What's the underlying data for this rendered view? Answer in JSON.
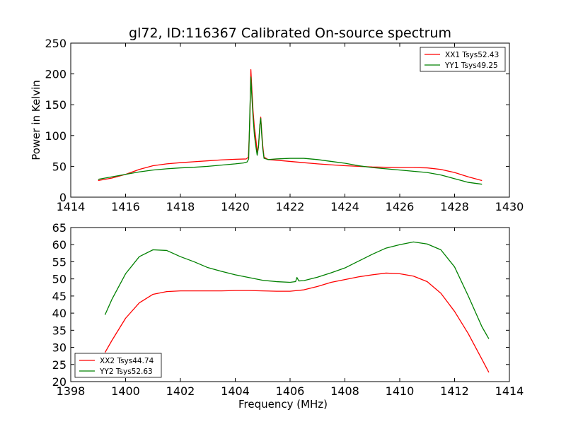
{
  "chart_data": [
    {
      "type": "line",
      "title": "gl72, ID:116367 Calibrated On-source spectrum",
      "xlabel": "",
      "ylabel": "Power in Kelvin",
      "xlim": [
        1414,
        1430
      ],
      "ylim": [
        0,
        250
      ],
      "xticks": [
        1414,
        1416,
        1418,
        1420,
        1422,
        1424,
        1426,
        1428,
        1430
      ],
      "yticks": [
        0,
        50,
        100,
        150,
        200,
        250
      ],
      "legend_position": "top-right",
      "series": [
        {
          "name": "XX1 Tsys52.43",
          "color": "#ff0000",
          "points": [
            [
              1415,
              27
            ],
            [
              1415.5,
              31
            ],
            [
              1416,
              37
            ],
            [
              1416.5,
              45
            ],
            [
              1417,
              51
            ],
            [
              1417.5,
              54
            ],
            [
              1418,
              56
            ],
            [
              1418.5,
              57.5
            ],
            [
              1419,
              59
            ],
            [
              1419.5,
              60.5
            ],
            [
              1420,
              61.5
            ],
            [
              1420.4,
              62
            ],
            [
              1420.48,
              65
            ],
            [
              1420.53,
              120
            ],
            [
              1420.57,
              207
            ],
            [
              1420.6,
              180
            ],
            [
              1420.65,
              140
            ],
            [
              1420.7,
              112
            ],
            [
              1420.74,
              100
            ],
            [
              1420.8,
              72
            ],
            [
              1420.85,
              85
            ],
            [
              1420.9,
              117
            ],
            [
              1420.93,
              130
            ],
            [
              1420.96,
              110
            ],
            [
              1421,
              85
            ],
            [
              1421.05,
              65
            ],
            [
              1421.2,
              61
            ],
            [
              1421.5,
              60
            ],
            [
              1422,
              58
            ],
            [
              1422.5,
              56
            ],
            [
              1423,
              54
            ],
            [
              1423.5,
              52.5
            ],
            [
              1424,
              51
            ],
            [
              1424.5,
              50
            ],
            [
              1425,
              49
            ],
            [
              1425.5,
              48.5
            ],
            [
              1426,
              48
            ],
            [
              1426.5,
              48
            ],
            [
              1427,
              47.5
            ],
            [
              1427.5,
              45
            ],
            [
              1428,
              40
            ],
            [
              1428.5,
              33
            ],
            [
              1429,
              27
            ]
          ]
        },
        {
          "name": "YY1 Tsys49.25",
          "color": "#008000",
          "points": [
            [
              1415,
              29
            ],
            [
              1415.5,
              33
            ],
            [
              1416,
              37
            ],
            [
              1416.5,
              41
            ],
            [
              1417,
              44
            ],
            [
              1417.5,
              46
            ],
            [
              1418,
              47.5
            ],
            [
              1418.5,
              48.5
            ],
            [
              1419,
              50
            ],
            [
              1419.5,
              52
            ],
            [
              1420,
              54
            ],
            [
              1420.3,
              55.5
            ],
            [
              1420.43,
              57
            ],
            [
              1420.49,
              62
            ],
            [
              1420.54,
              150
            ],
            [
              1420.57,
              195
            ],
            [
              1420.6,
              168
            ],
            [
              1420.65,
              130
            ],
            [
              1420.7,
              100
            ],
            [
              1420.75,
              83
            ],
            [
              1420.8,
              68
            ],
            [
              1420.85,
              82
            ],
            [
              1420.9,
              118
            ],
            [
              1420.93,
              128
            ],
            [
              1420.96,
              105
            ],
            [
              1421,
              80
            ],
            [
              1421.05,
              63
            ],
            [
              1421.2,
              61
            ],
            [
              1421.5,
              62
            ],
            [
              1422,
              63
            ],
            [
              1422.5,
              63
            ],
            [
              1423,
              61
            ],
            [
              1423.5,
              58
            ],
            [
              1424,
              55
            ],
            [
              1424.5,
              51
            ],
            [
              1425,
              48
            ],
            [
              1425.5,
              46
            ],
            [
              1426,
              44
            ],
            [
              1426.5,
              42
            ],
            [
              1427,
              40
            ],
            [
              1427.5,
              36
            ],
            [
              1428,
              30
            ],
            [
              1428.5,
              24
            ],
            [
              1429,
              21
            ]
          ]
        }
      ]
    },
    {
      "type": "line",
      "title": "",
      "xlabel": "Frequency (MHz)",
      "ylabel": "",
      "xlim": [
        1398,
        1414
      ],
      "ylim": [
        20,
        65
      ],
      "xticks": [
        1398,
        1400,
        1402,
        1404,
        1406,
        1408,
        1410,
        1412,
        1414
      ],
      "yticks": [
        20,
        25,
        30,
        35,
        40,
        45,
        50,
        55,
        60,
        65
      ],
      "legend_position": "bottom-left",
      "series": [
        {
          "name": "XX2 Tsys44.74",
          "color": "#ff0000",
          "points": [
            [
              1399.25,
              28.5
            ],
            [
              1399.5,
              32
            ],
            [
              1400,
              38.5
            ],
            [
              1400.5,
              43
            ],
            [
              1401,
              45.5
            ],
            [
              1401.5,
              46.3
            ],
            [
              1402,
              46.5
            ],
            [
              1402.5,
              46.5
            ],
            [
              1403,
              46.5
            ],
            [
              1403.5,
              46.5
            ],
            [
              1404,
              46.6
            ],
            [
              1404.5,
              46.6
            ],
            [
              1405,
              46.5
            ],
            [
              1405.5,
              46.4
            ],
            [
              1406,
              46.4
            ],
            [
              1406.5,
              46.8
            ],
            [
              1407,
              47.8
            ],
            [
              1407.5,
              49
            ],
            [
              1408,
              49.8
            ],
            [
              1408.5,
              50.6
            ],
            [
              1409,
              51.2
            ],
            [
              1409.5,
              51.7
            ],
            [
              1410,
              51.5
            ],
            [
              1410.5,
              50.8
            ],
            [
              1411,
              49.2
            ],
            [
              1411.5,
              45.8
            ],
            [
              1412,
              40.5
            ],
            [
              1412.5,
              34
            ],
            [
              1413,
              26.5
            ],
            [
              1413.25,
              22.7
            ]
          ]
        },
        {
          "name": "YY2 Tsys52.63",
          "color": "#008000",
          "points": [
            [
              1399.25,
              39.5
            ],
            [
              1399.5,
              44
            ],
            [
              1400,
              51.5
            ],
            [
              1400.5,
              56.5
            ],
            [
              1401,
              58.5
            ],
            [
              1401.5,
              58.3
            ],
            [
              1402,
              56.5
            ],
            [
              1402.5,
              55
            ],
            [
              1403,
              53.3
            ],
            [
              1403.5,
              52.2
            ],
            [
              1404,
              51.2
            ],
            [
              1404.5,
              50.4
            ],
            [
              1405,
              49.6
            ],
            [
              1405.5,
              49.2
            ],
            [
              1406,
              49
            ],
            [
              1406.2,
              49.2
            ],
            [
              1406.25,
              50.4
            ],
            [
              1406.32,
              49.4
            ],
            [
              1406.5,
              49.5
            ],
            [
              1407,
              50.5
            ],
            [
              1407.5,
              51.8
            ],
            [
              1408,
              53.2
            ],
            [
              1408.5,
              55.2
            ],
            [
              1409,
              57.2
            ],
            [
              1409.5,
              59
            ],
            [
              1410,
              60
            ],
            [
              1410.5,
              60.8
            ],
            [
              1411,
              60.2
            ],
            [
              1411.5,
              58.5
            ],
            [
              1412,
              53.5
            ],
            [
              1412.5,
              45
            ],
            [
              1413,
              36
            ],
            [
              1413.25,
              32.5
            ]
          ]
        }
      ]
    }
  ]
}
